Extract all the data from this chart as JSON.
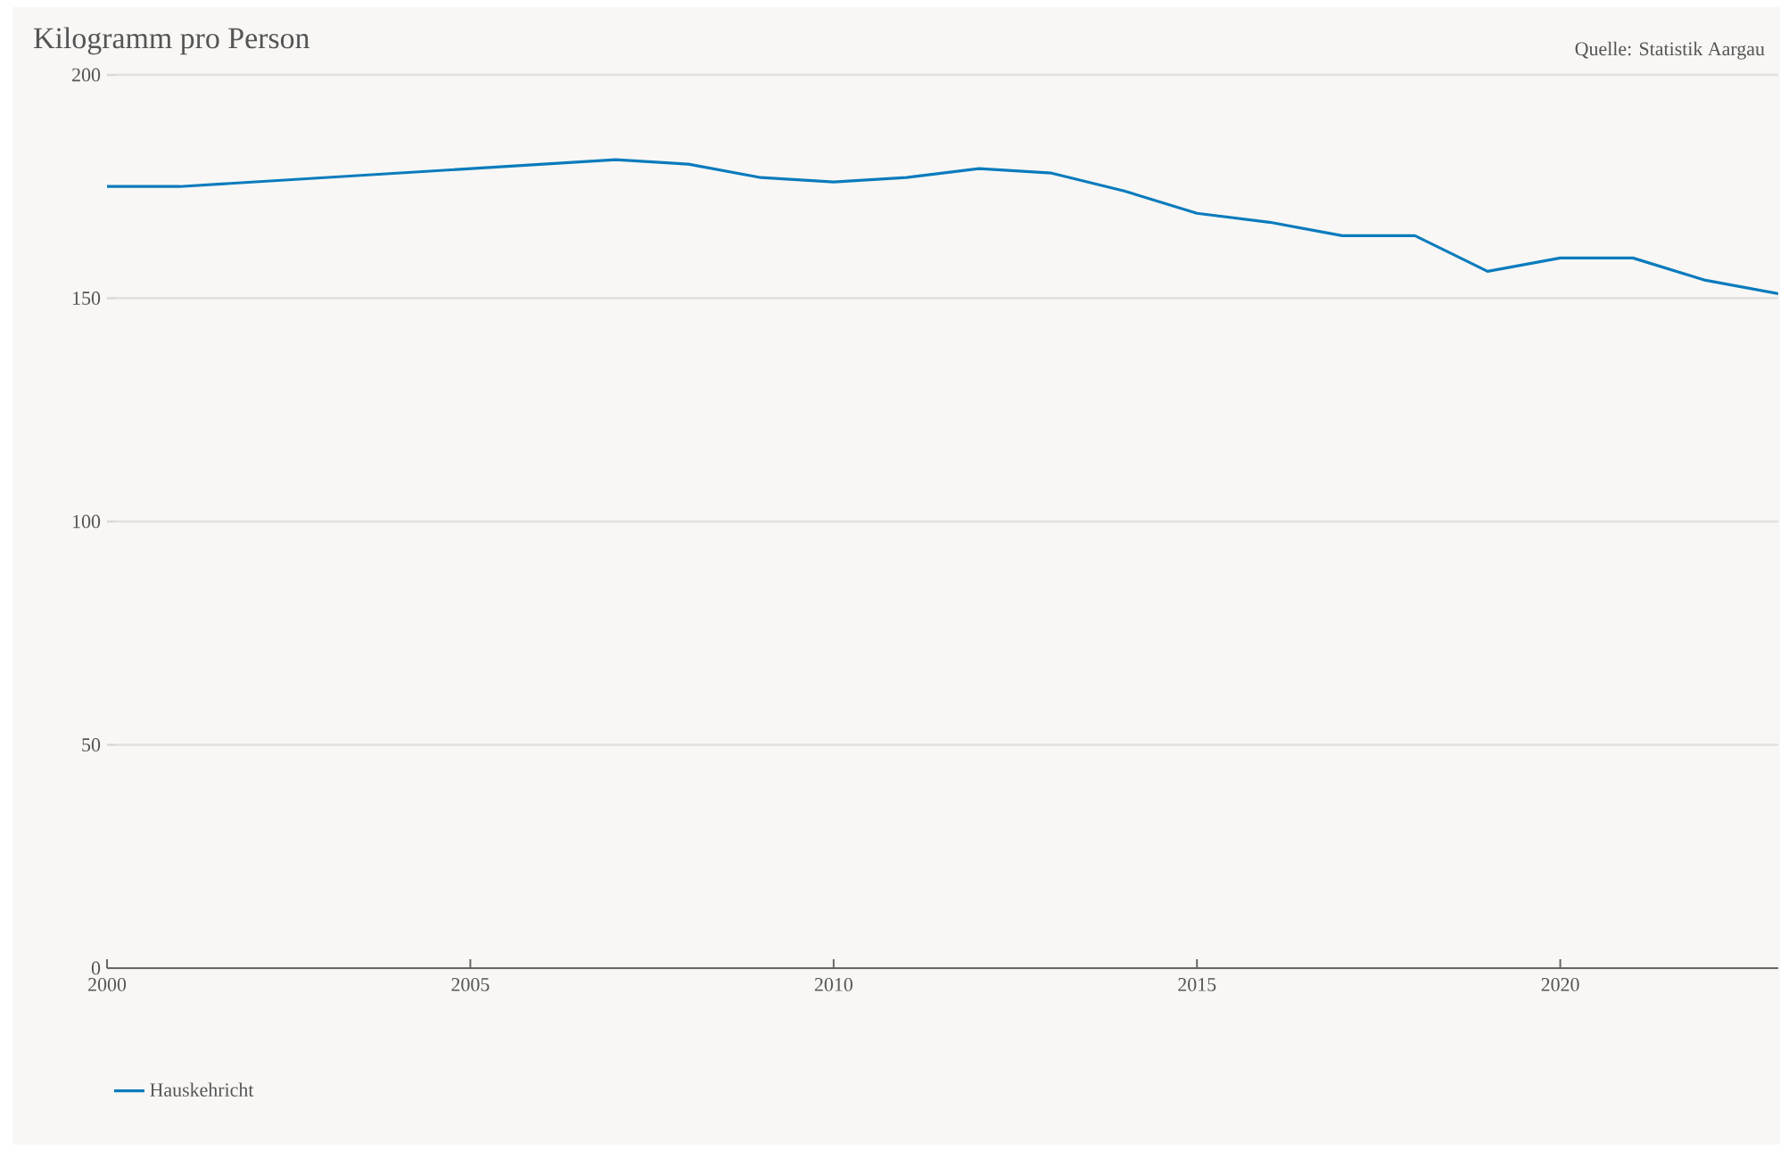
{
  "chart_data": {
    "type": "line",
    "title": "Kilogramm pro Person",
    "annotations": [
      "Quelle: Statistik Aargau"
    ],
    "x": [
      2000,
      2001,
      2007,
      2008,
      2009,
      2010,
      2011,
      2012,
      2013,
      2014,
      2015,
      2016,
      2017,
      2018,
      2019,
      2020,
      2021,
      2022,
      2023
    ],
    "series": [
      {
        "name": "Hauskehricht",
        "color": "#0a7bbd",
        "values": [
          175,
          175,
          181,
          180,
          177,
          176,
          177,
          179,
          178,
          174,
          169,
          167,
          164,
          164,
          156,
          159,
          159,
          154,
          151
        ]
      }
    ],
    "xlim": [
      2000,
      2023
    ],
    "xticks": [
      2000,
      2005,
      2010,
      2015,
      2020
    ],
    "ylim": [
      0,
      200
    ],
    "yticks": [
      0,
      50,
      100,
      150,
      200
    ],
    "grid": "y",
    "legend": "bottom left",
    "line_style": "solid",
    "marker": "none"
  }
}
